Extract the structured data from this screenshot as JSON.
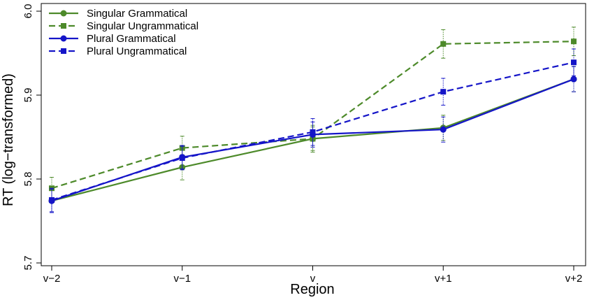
{
  "chart_data": {
    "type": "line",
    "categories": [
      "v−2",
      "v−1",
      "v",
      "v+1",
      "v+2"
    ],
    "xlabel": "Region",
    "ylabel": "RT (log−transformed)",
    "ylim": [
      5.7,
      6.0
    ],
    "yticks": [
      5.7,
      5.8,
      5.9,
      6.0
    ],
    "ytick_labels": [
      "5.7",
      "5.8",
      "5.9",
      "6.0"
    ],
    "grid": false,
    "legend_position": "top-left",
    "series": [
      {
        "name": "Singular Grammatical",
        "color": "#4d8a2a",
        "line_style": "solid",
        "marker": "circle",
        "values": [
          5.774,
          5.814,
          5.848,
          5.861,
          5.919
        ],
        "errors": [
          0.014,
          0.015,
          0.014,
          0.015,
          0.015
        ]
      },
      {
        "name": "Singular Ungrammatical",
        "color": "#4d8a2a",
        "line_style": "dashed",
        "marker": "square",
        "values": [
          5.789,
          5.837,
          5.848,
          5.961,
          5.964
        ],
        "errors": [
          0.013,
          0.014,
          0.016,
          0.017,
          0.017
        ]
      },
      {
        "name": "Plural Grammatical",
        "color": "#1515c8",
        "line_style": "solid",
        "marker": "circle",
        "values": [
          5.774,
          5.826,
          5.853,
          5.859,
          5.919
        ],
        "errors": [
          0.014,
          0.014,
          0.015,
          0.015,
          0.015
        ]
      },
      {
        "name": "Plural Ungrammatical",
        "color": "#1515c8",
        "line_style": "dashed",
        "marker": "square",
        "values": [
          5.775,
          5.825,
          5.856,
          5.904,
          5.939
        ],
        "errors": [
          0.014,
          0.014,
          0.016,
          0.016,
          0.016
        ]
      }
    ]
  }
}
